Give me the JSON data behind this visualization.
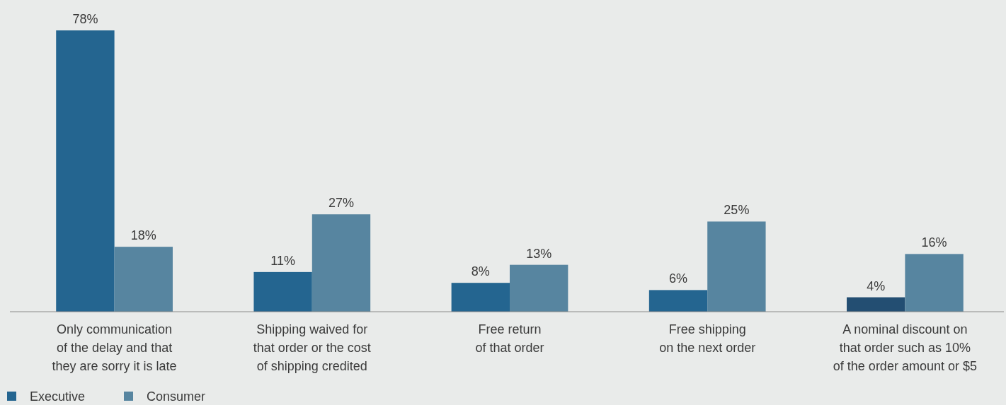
{
  "chart_data": {
    "type": "bar",
    "categories": [
      "Only communication\nof the delay and that\nthey are sorry it is late",
      "Shipping waived for\nthat order or the cost\nof shipping credited",
      "Free return\nof that order",
      "Free shipping\non the next order",
      "A nominal discount on\nthat order such as 10%\nof the order amount or $5"
    ],
    "series": [
      {
        "name": "Executive",
        "color": "#246590",
        "colors": [
          "#246590",
          "#246590",
          "#246590",
          "#246590",
          "#234e72"
        ],
        "values": [
          78,
          11,
          8,
          6,
          4
        ],
        "value_labels": [
          "78%",
          "11%",
          "8%",
          "6%",
          "4%"
        ]
      },
      {
        "name": "Consumer",
        "color": "#5785a0",
        "values": [
          18,
          27,
          13,
          25,
          16
        ],
        "value_labels": [
          "18%",
          "27%",
          "13%",
          "25%",
          "16%"
        ]
      }
    ],
    "legend": "bottom left"
  }
}
